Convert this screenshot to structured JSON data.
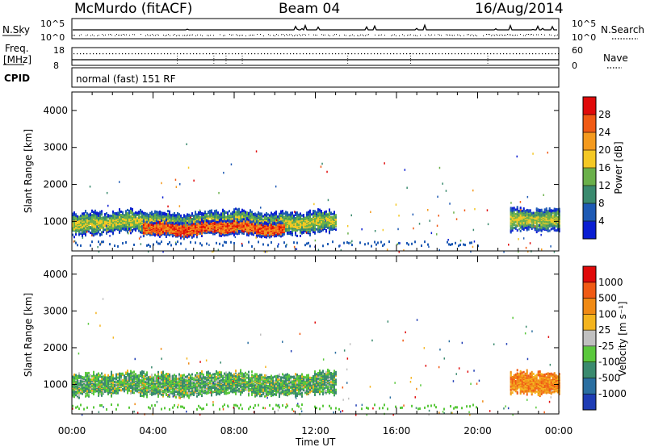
{
  "header": {
    "site": "McMurdo (fitACF)",
    "beam": "Beam 04",
    "date": "16/Aug/2014"
  },
  "noise_panel": {
    "left_label": "N.Sky",
    "right_label": "N.Search",
    "left_ticks": [
      "10^5",
      "10^0"
    ],
    "right_ticks": [
      "10^5",
      "10^0"
    ]
  },
  "freq_panel": {
    "left_label_line1": "Freq.",
    "left_label_line2": "[MHz]",
    "left_ticks": [
      "18",
      "8"
    ],
    "right_label": "Nave",
    "right_ticks": [
      "60",
      "0"
    ]
  },
  "cpid": {
    "label": "CPID",
    "text": "normal (fast) 151 RF"
  },
  "x_axis": {
    "label": "Time UT",
    "tick_labels": [
      "00:00",
      "04:00",
      "08:00",
      "12:00",
      "16:00",
      "20:00",
      "00:00"
    ]
  },
  "chart_data": [
    {
      "type": "heatmap",
      "quantity": "power",
      "ylabel": "Slant Range [km]",
      "x_range_hours": [
        0,
        24
      ],
      "ylim": [
        200,
        4500
      ],
      "y_ticks": [
        1000,
        2000,
        3000,
        4000
      ],
      "colorbar_label": "Power [dB]",
      "colorbar_ticks": [
        "28",
        "24",
        "20",
        "16",
        "12",
        "8",
        "4"
      ],
      "colorbar_colors": [
        "#0a1ed2",
        "#1e5ab4",
        "#3a8a6e",
        "#6ab04a",
        "#f4c824",
        "#f49a1e",
        "#f05a14",
        "#e00a0a"
      ],
      "echo_regions": [
        {
          "t_start": 0.0,
          "t_end": 13.0,
          "range_center_km": 1000,
          "range_halfwidth_km": 300,
          "level": "moderate"
        },
        {
          "t_start": 3.5,
          "t_end": 10.5,
          "range_center_km": 850,
          "range_halfwidth_km": 200,
          "level": "strong"
        },
        {
          "t_start": 21.6,
          "t_end": 24.0,
          "range_center_km": 1050,
          "range_halfwidth_km": 300,
          "level": "moderate"
        }
      ]
    },
    {
      "type": "heatmap",
      "quantity": "velocity",
      "ylabel": "Slant Range [km]",
      "x_range_hours": [
        0,
        24
      ],
      "ylim": [
        200,
        4500
      ],
      "y_ticks": [
        1000,
        2000,
        3000,
        4000
      ],
      "colorbar_label": "Velocity [m s⁻¹]",
      "colorbar_ticks": [
        "1000",
        "500",
        "100",
        "25",
        "-25",
        "-100",
        "-500",
        "-1000"
      ],
      "colorbar_colors": [
        "#1e3cb4",
        "#2a6ea0",
        "#3a8a6e",
        "#5ac83c",
        "#c0c0c0",
        "#f4b41e",
        "#f08a14",
        "#f05a14",
        "#e00a0a"
      ],
      "echo_regions": [
        {
          "t_start": 0.0,
          "t_end": 13.0,
          "range_center_km": 1050,
          "range_halfwidth_km": 300,
          "level": "negative_slow"
        },
        {
          "t_start": 21.6,
          "t_end": 24.0,
          "range_center_km": 1050,
          "range_halfwidth_km": 300,
          "level": "positive"
        }
      ]
    }
  ]
}
